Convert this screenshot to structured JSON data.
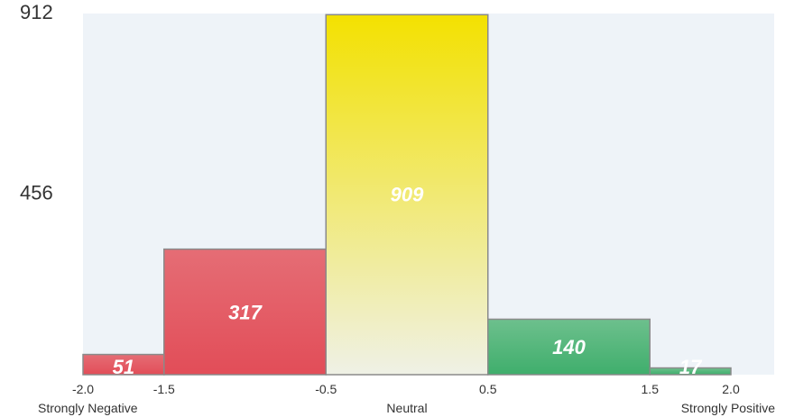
{
  "chart_data": {
    "type": "bar",
    "bins": [
      {
        "x0": -2.0,
        "x1": -1.5,
        "value": 51,
        "label": "51",
        "color": "red"
      },
      {
        "x0": -1.5,
        "x1": -0.5,
        "value": 317,
        "label": "317",
        "color": "red"
      },
      {
        "x0": -0.5,
        "x1": 0.5,
        "value": 909,
        "label": "909",
        "color": "yellow"
      },
      {
        "x0": 0.5,
        "x1": 1.5,
        "value": 140,
        "label": "140",
        "color": "green"
      },
      {
        "x0": 1.5,
        "x1": 2.0,
        "value": 17,
        "label": "17",
        "color": "green"
      }
    ],
    "xlim": [
      -2.0,
      2.0
    ],
    "ylim": [
      0,
      912
    ],
    "y_tick_labels": [
      "912",
      "456"
    ],
    "y_tick_values": [
      912,
      456
    ],
    "x_tick_values": [
      -2.0,
      -1.5,
      -0.5,
      0.5,
      1.5,
      2.0
    ],
    "x_tick_labels": [
      "-2.0",
      "-1.5",
      "-0.5",
      "0.5",
      "1.5",
      "2.0"
    ],
    "category_labels": [
      "Strongly Negative",
      "Neutral",
      "Strongly Positive"
    ],
    "category_positions": [
      -2.0,
      0.0,
      2.0
    ],
    "grid": false,
    "colors": {
      "plot_background": "#eef3f8",
      "red_top": "#e56d75",
      "red_bottom": "#e24d58",
      "yellow_top": "#f3e100",
      "yellow_bottom": "#eff1e6",
      "green_top": "#6dc08d",
      "green_bottom": "#3fae6c",
      "bar_stroke": "#8a8a8a"
    }
  }
}
